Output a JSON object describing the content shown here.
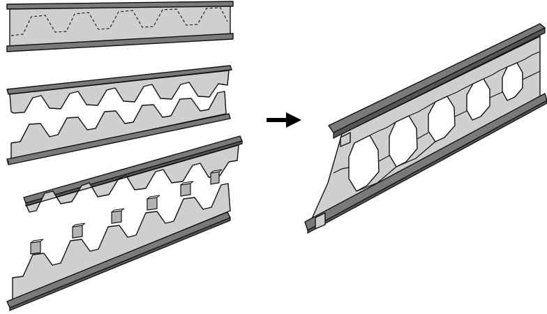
{
  "figure": {
    "kind": "castellated-beam-fabrication",
    "steps": [
      "cut-web",
      "separate-halves",
      "insert-spacer-plates",
      "welded-beam"
    ],
    "colors": {
      "web": "#cfcfcf",
      "flange_top": "#7a7a7a",
      "flange_edge": "#555555",
      "spacer": "#b4b4b4",
      "outline": "#111111",
      "arrow": "#000000",
      "background": "#ffffff"
    }
  }
}
